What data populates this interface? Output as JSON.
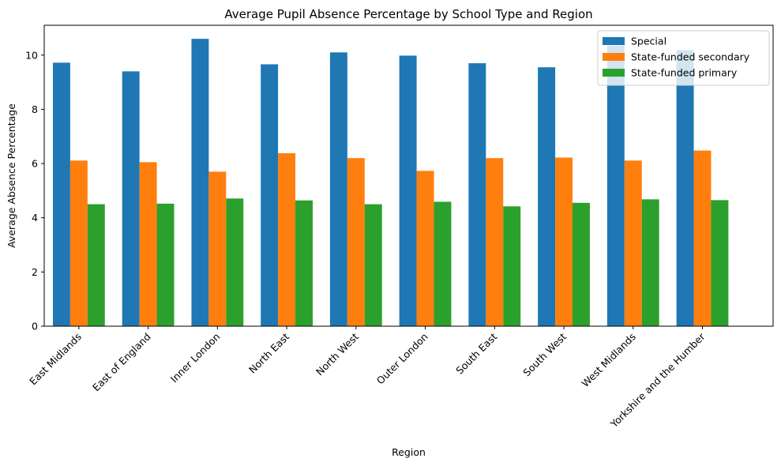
{
  "chart_data": {
    "type": "bar",
    "title": "Average Pupil Absence Percentage by School Type and Region",
    "xlabel": "Region",
    "ylabel": "Average Absence Percentage",
    "categories": [
      "East Midlands",
      "East of England",
      "Inner London",
      "North East",
      "North West",
      "Outer London",
      "South East",
      "South West",
      "West Midlands",
      "Yorkshire and the Humber"
    ],
    "series": [
      {
        "name": "Special",
        "color": "#1f77b4",
        "values": [
          9.72,
          9.4,
          10.6,
          9.66,
          10.1,
          9.98,
          9.7,
          9.55,
          10.35,
          10.18
        ]
      },
      {
        "name": "State-funded secondary",
        "color": "#ff7f0e",
        "values": [
          6.11,
          6.05,
          5.7,
          6.38,
          6.2,
          5.73,
          6.2,
          6.22,
          6.11,
          6.48
        ]
      },
      {
        "name": "State-funded primary",
        "color": "#2ca02c",
        "values": [
          4.5,
          4.52,
          4.71,
          4.64,
          4.5,
          4.59,
          4.42,
          4.55,
          4.68,
          4.65
        ]
      }
    ],
    "ylim": [
      0,
      11.1
    ],
    "yticks": [
      0,
      2,
      4,
      6,
      8,
      10
    ],
    "legend": "top-right",
    "grid": false
  }
}
